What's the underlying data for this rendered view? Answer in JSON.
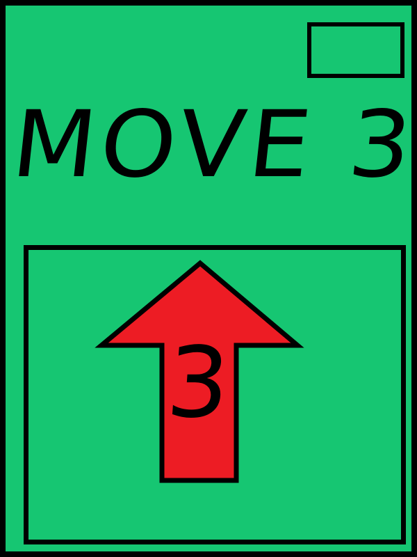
{
  "card": {
    "title": "MOVE 3",
    "move_count": 3
  },
  "arrow": {
    "direction": "up",
    "number": "3",
    "fill_color": "#ed1c24",
    "icon": "up-arrow-icon"
  },
  "colors": {
    "card_background": "#16c672",
    "outline": "#000000"
  }
}
